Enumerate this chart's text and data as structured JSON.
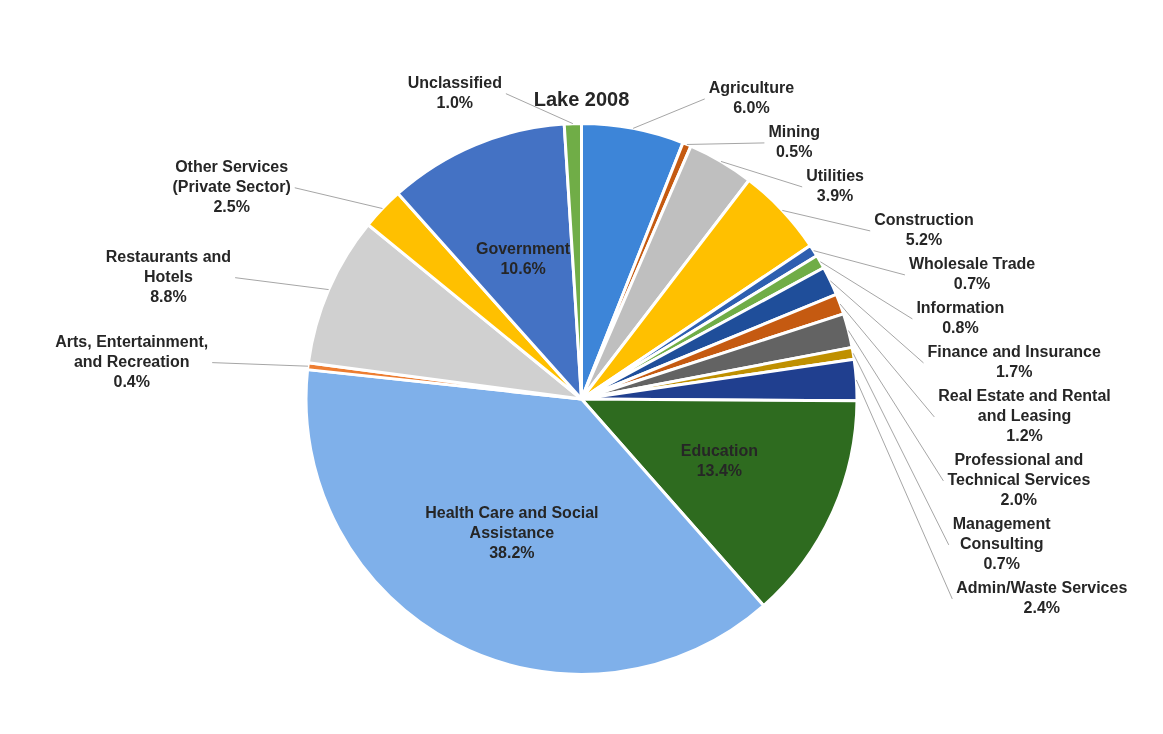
{
  "chart_data": {
    "type": "pie",
    "title": "Lake 2008",
    "categories": [
      "Agriculture",
      "Mining",
      "Utilities",
      "Construction",
      "Wholesale Trade",
      "Information",
      "Finance and Insurance",
      "Real Estate and Rental and Leasing",
      "Professional and Technical Services",
      "Management Consulting",
      "Admin/Waste Services",
      "Education",
      "Health Care and Social Assistance",
      "Arts, Entertainment, and Recreation",
      "Restaurants and Hotels",
      "Other Services (Private Sector)",
      "Government",
      "Unclassified"
    ],
    "values": [
      6.0,
      0.5,
      3.9,
      5.2,
      0.7,
      0.8,
      1.7,
      1.2,
      2.0,
      0.7,
      2.4,
      13.4,
      38.2,
      0.4,
      8.8,
      2.5,
      10.6,
      1.0
    ],
    "value_labels": [
      "6.0%",
      "0.5%",
      "3.9%",
      "5.2%",
      "0.7%",
      "0.8%",
      "1.7%",
      "1.2%",
      "2.0%",
      "0.7%",
      "2.4%",
      "13.4%",
      "38.2%",
      "0.4%",
      "8.8%",
      "2.5%",
      "10.6%",
      "1.0%"
    ],
    "colors": [
      "#3d85d8",
      "#c55a11",
      "#bfbfbf",
      "#ffc000",
      "#2e5fb0",
      "#70ad47",
      "#1f4e9a",
      "#c55a11",
      "#636363",
      "#bf9000",
      "#203f8f",
      "#2e6b1f",
      "#7fb0ea",
      "#ed7d31",
      "#d0d0d0",
      "#ffc000",
      "#4472c4",
      "#70ad47"
    ],
    "legend": false
  }
}
